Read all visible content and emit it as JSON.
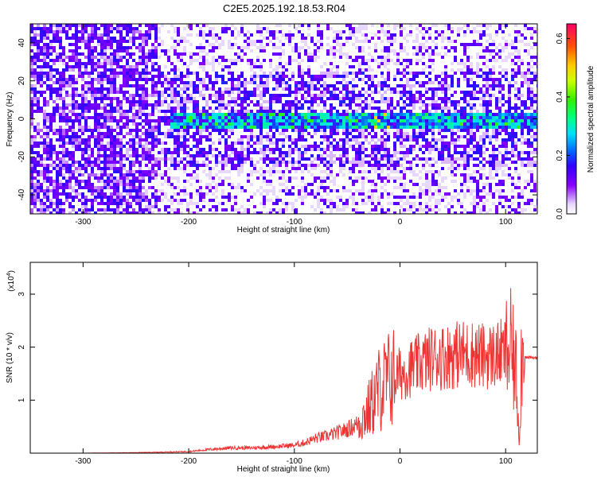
{
  "title": "C2E5.2025.192.18.53.R04",
  "chart_data": [
    {
      "type": "heatmap",
      "xlabel": "Height of straight line (km)",
      "ylabel": "Frequency (Hz)",
      "xlim": [
        -350,
        130
      ],
      "ylim": [
        -50,
        50
      ],
      "xticks": [
        -300,
        -200,
        -100,
        0,
        100
      ],
      "yticks": [
        -40,
        -20,
        0,
        20,
        40
      ],
      "colorbar": {
        "label": "Normalized spectral amplitude",
        "range": [
          0.0,
          0.65
        ],
        "ticks": [
          0.0,
          0.2,
          0.4,
          0.6
        ],
        "tick_labels": [
          "0.0",
          "0.2",
          "0.4",
          "0.6"
        ]
      },
      "description_of_features": {
        "signal_band_center_hz": 0,
        "signal_band_start_km": -220,
        "peak_amplitude_near_km": -20
      }
    },
    {
      "type": "line",
      "xlabel": "Height of straight line (km)",
      "ylabel": "SNR (10 * v/v)",
      "yscale_label": "(x10",
      "yscale_exponent": "4",
      "xlim": [
        -350,
        130
      ],
      "ylim": [
        0,
        3.6
      ],
      "xticks": [
        -300,
        -200,
        -100,
        0,
        100
      ],
      "yticks": [
        1,
        2,
        3
      ],
      "line_color": "#ee3333",
      "series": [
        {
          "x": [
            -350,
            -300,
            -250,
            -200,
            -180,
            -160,
            -140,
            -120,
            -100,
            -90,
            -80,
            -70,
            -60,
            -50,
            -40,
            -30,
            -25,
            -20,
            -15,
            -10,
            0,
            10,
            20,
            30,
            40,
            50,
            60,
            70,
            80,
            90,
            100,
            105,
            110,
            113,
            115,
            120,
            130
          ],
          "y": [
            0.0,
            0.0,
            0.01,
            0.03,
            0.07,
            0.1,
            0.1,
            0.12,
            0.15,
            0.2,
            0.28,
            0.32,
            0.38,
            0.45,
            0.55,
            0.8,
            1.0,
            1.2,
            1.3,
            1.4,
            1.5,
            1.6,
            1.7,
            1.8,
            1.82,
            1.85,
            1.88,
            1.87,
            1.82,
            1.85,
            1.9,
            1.95,
            1.5,
            0.2,
            1.9,
            1.8,
            1.8
          ]
        }
      ]
    }
  ]
}
